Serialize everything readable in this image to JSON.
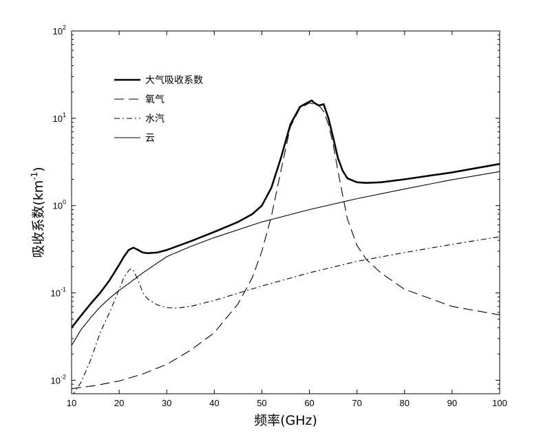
{
  "chart_data": {
    "type": "line",
    "xlabel": "频率(GHz)",
    "ylabel": "吸收系数(km",
    "ylabel_sup": "-1",
    "ylabel_close": ")",
    "xlim": [
      10,
      100
    ],
    "ylim": [
      0.007,
      100
    ],
    "yscale": "log",
    "grid": false,
    "legend_position": "top-left",
    "x_ticks": [
      10,
      20,
      30,
      40,
      50,
      60,
      70,
      80,
      90,
      100
    ],
    "x_tick_labels": [
      "10",
      "20",
      "30",
      "40",
      "50",
      "60",
      "70",
      "80",
      "90",
      "100"
    ],
    "y_ticks": [
      0.01,
      0.1,
      1,
      10,
      100
    ],
    "y_tick_labels": [
      {
        "base": "10",
        "exp": "-2"
      },
      {
        "base": "10",
        "exp": "-1"
      },
      {
        "base": "10",
        "exp": "0"
      },
      {
        "base": "10",
        "exp": "1"
      },
      {
        "base": "10",
        "exp": "2"
      }
    ],
    "series": [
      {
        "name": "大气吸收系数",
        "style": "solid-thick",
        "color": "#000000",
        "x": [
          10,
          12,
          14,
          16,
          18,
          20,
          21,
          22,
          23,
          24,
          25,
          26,
          28,
          30,
          35,
          40,
          45,
          48,
          50,
          52,
          54,
          56,
          58,
          59,
          60,
          60.5,
          61,
          62,
          63,
          64,
          65,
          66,
          67,
          68,
          70,
          72,
          75,
          80,
          90,
          100
        ],
        "y": [
          0.04,
          0.055,
          0.075,
          0.1,
          0.14,
          0.21,
          0.26,
          0.31,
          0.33,
          0.31,
          0.29,
          0.285,
          0.29,
          0.31,
          0.39,
          0.5,
          0.65,
          0.8,
          1.0,
          1.6,
          3.5,
          8.5,
          13.5,
          14.5,
          15.5,
          16,
          15,
          14,
          14.5,
          10,
          6,
          3.5,
          2.5,
          2.05,
          1.85,
          1.82,
          1.85,
          2.0,
          2.4,
          3.0
        ]
      },
      {
        "name": "氧气",
        "style": "dashed",
        "color": "#000000",
        "x": [
          10,
          15,
          20,
          25,
          30,
          35,
          40,
          45,
          48,
          50,
          52,
          54,
          56,
          58,
          60,
          61,
          62,
          63,
          64,
          65,
          66,
          67,
          68,
          70,
          72,
          75,
          80,
          90,
          100
        ],
        "y": [
          0.008,
          0.0087,
          0.0098,
          0.0118,
          0.0152,
          0.022,
          0.035,
          0.075,
          0.15,
          0.3,
          0.75,
          2.5,
          8.0,
          13,
          15,
          14.5,
          14,
          12,
          8.5,
          5,
          2.5,
          1.3,
          0.7,
          0.35,
          0.24,
          0.17,
          0.11,
          0.07,
          0.056
        ]
      },
      {
        "name": "水汽",
        "style": "dashdot",
        "color": "#000000",
        "x": [
          10,
          12,
          14,
          16,
          18,
          20,
          21,
          22,
          22.5,
          23,
          24,
          25,
          26,
          28,
          30,
          32,
          35,
          40,
          50,
          60,
          70,
          80,
          90,
          100
        ],
        "y": [
          0.0065,
          0.0095,
          0.017,
          0.035,
          0.06,
          0.11,
          0.15,
          0.18,
          0.19,
          0.18,
          0.14,
          0.1,
          0.085,
          0.073,
          0.068,
          0.067,
          0.07,
          0.082,
          0.12,
          0.17,
          0.23,
          0.29,
          0.36,
          0.44
        ]
      },
      {
        "name": "云",
        "style": "solid-thin",
        "color": "#000000",
        "x": [
          10,
          12,
          14,
          16,
          18,
          20,
          22,
          25,
          30,
          35,
          40,
          50,
          60,
          70,
          80,
          90,
          100
        ],
        "y": [
          0.025,
          0.038,
          0.052,
          0.069,
          0.087,
          0.107,
          0.128,
          0.17,
          0.26,
          0.34,
          0.43,
          0.65,
          0.9,
          1.2,
          1.55,
          1.98,
          2.45
        ]
      }
    ]
  }
}
